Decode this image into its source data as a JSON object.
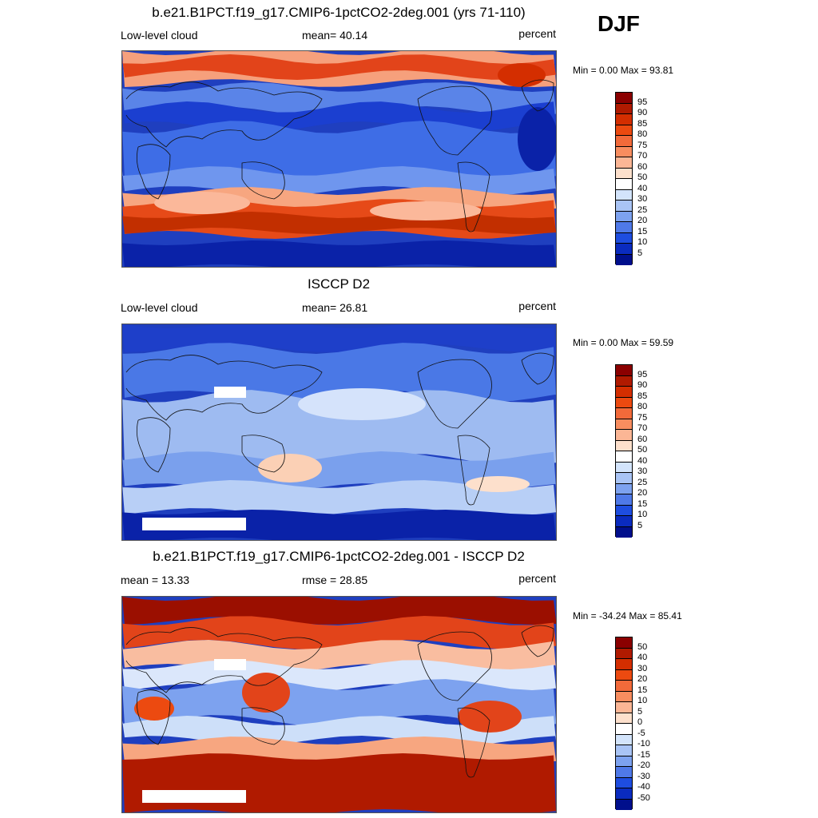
{
  "season": "DJF",
  "panels": [
    {
      "title": "b.e21.B1PCT.f19_g17.CMIP6-1pctCO2-2deg.001 (yrs 71-110)",
      "left_label": "Low-level cloud",
      "center_label": "mean=  40.14",
      "right_label": "percent",
      "minmax": "Min =   0.00 Max =  93.81",
      "map_name": "model-low-cloud-map",
      "pattern": "model",
      "legend": {
        "labels": [
          "95",
          "90",
          "85",
          "80",
          "75",
          "70",
          "60",
          "50",
          "40",
          "30",
          "25",
          "20",
          "15",
          "10",
          "5"
        ],
        "colors": [
          "#8b0000",
          "#b01a00",
          "#d42e00",
          "#ec4a10",
          "#f26a3a",
          "#f88d5f",
          "#fbb695",
          "#fde0cc",
          "#ffffff",
          "#d3e4fb",
          "#a9c4f5",
          "#7da2ef",
          "#4f79e8",
          "#1e4de0",
          "#0a2bbf",
          "#000f8c"
        ]
      }
    },
    {
      "title": "ISCCP D2",
      "left_label": "Low-level cloud",
      "center_label": "mean=  26.81",
      "right_label": "percent",
      "minmax": "Min =   0.00 Max =  59.59",
      "map_name": "isccp-low-cloud-map",
      "pattern": "obs",
      "legend": {
        "labels": [
          "95",
          "90",
          "85",
          "80",
          "75",
          "70",
          "60",
          "50",
          "40",
          "30",
          "25",
          "20",
          "15",
          "10",
          "5"
        ],
        "colors": [
          "#8b0000",
          "#b01a00",
          "#d42e00",
          "#ec4a10",
          "#f26a3a",
          "#f88d5f",
          "#fbb695",
          "#fde0cc",
          "#ffffff",
          "#d3e4fb",
          "#a9c4f5",
          "#7da2ef",
          "#4f79e8",
          "#1e4de0",
          "#0a2bbf",
          "#000f8c"
        ]
      }
    },
    {
      "title": "b.e21.B1PCT.f19_g17.CMIP6-1pctCO2-2deg.001 - ISCCP D2",
      "left_label": "mean =  13.33",
      "center_label": "rmse =  28.85",
      "right_label": "percent",
      "minmax": "Min = -34.24 Max =  85.41",
      "map_name": "difference-map",
      "pattern": "diff",
      "legend": {
        "labels": [
          "50",
          "40",
          "30",
          "20",
          "15",
          "10",
          "5",
          "0",
          "-5",
          "-10",
          "-15",
          "-20",
          "-30",
          "-40",
          "-50"
        ],
        "colors": [
          "#8b0000",
          "#b01a00",
          "#d42e00",
          "#ec4a10",
          "#f26a3a",
          "#f88d5f",
          "#fbb695",
          "#fde0cc",
          "#ffffff",
          "#d3e4fb",
          "#a9c4f5",
          "#7da2ef",
          "#4f79e8",
          "#1e4de0",
          "#0a2bbf",
          "#000f8c"
        ]
      }
    }
  ]
}
